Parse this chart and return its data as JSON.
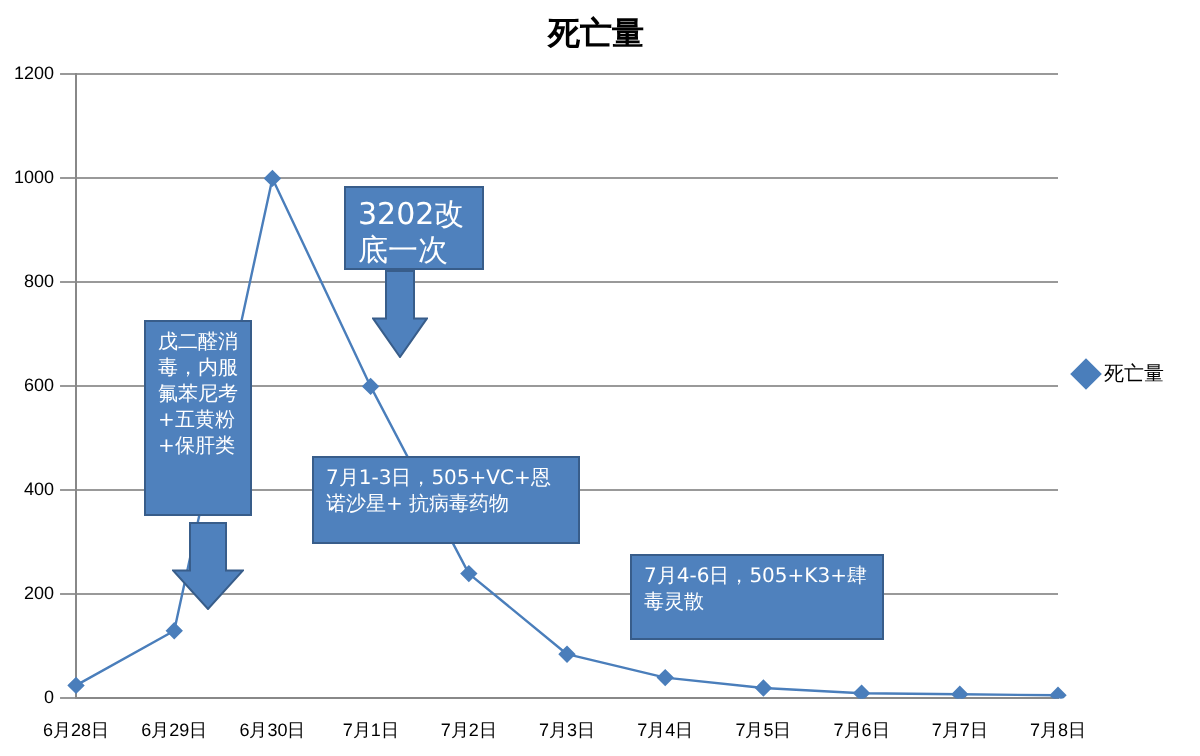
{
  "chart_data": {
    "type": "line",
    "title": "死亡量",
    "categories": [
      "6月28日",
      "6月29日",
      "6月30日",
      "7月1日",
      "7月2日",
      "7月3日",
      "7月4日",
      "7月5日",
      "7月6日",
      "7月7日",
      "7月8日"
    ],
    "series": [
      {
        "name": "死亡量",
        "color": "#4a7ebb",
        "values": [
          25,
          130,
          1000,
          600,
          240,
          85,
          40,
          20,
          10,
          8,
          6
        ]
      }
    ],
    "ylim": [
      0,
      1200
    ],
    "yticks": [
      0,
      200,
      400,
      600,
      800,
      1000,
      1200
    ],
    "grid": "y",
    "legend": "right",
    "marker": "diamond",
    "line_style": "solid",
    "annotations": [
      "戊二醛消毒，内服氟苯尼考+五黄粉+保肝类",
      "3202改底一次",
      "7月1-3日，505+VC+恩诺沙星+ 抗病毒药物",
      "7月4-6日，505+K3+肆毒灵散"
    ]
  }
}
